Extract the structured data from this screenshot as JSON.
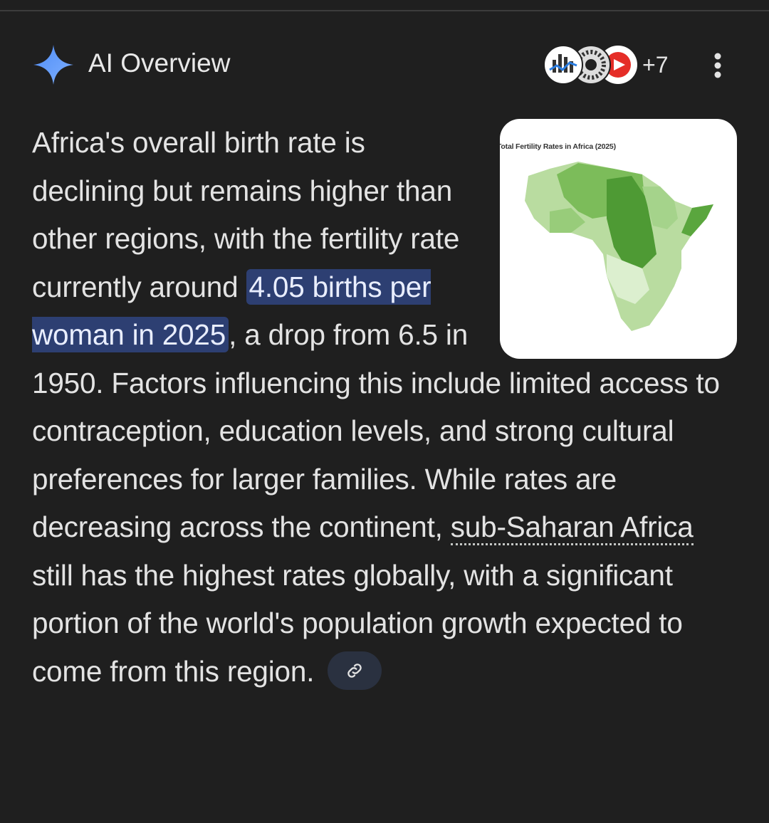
{
  "header": {
    "title": "AI Overview",
    "source_count": "+7"
  },
  "image": {
    "title": "Total Fertility Rates in Africa (2025)"
  },
  "paragraph": {
    "lead": "Africa's overall birth rate is declining but remains higher than other regions, with the fertility rate currently around ",
    "highlight": "4.05 births per woman in 2025",
    "middle": ", a drop from 6.5 in 1950. Factors influencing this include limited access to contraception, education levels, and strong cultural preferences for larger families. While rates are decreasing across the continent, ",
    "link": "sub-Saharan Africa",
    "tail": " still has the highest rates globally, with a significant portion of the world's population growth expected to come from this region."
  }
}
